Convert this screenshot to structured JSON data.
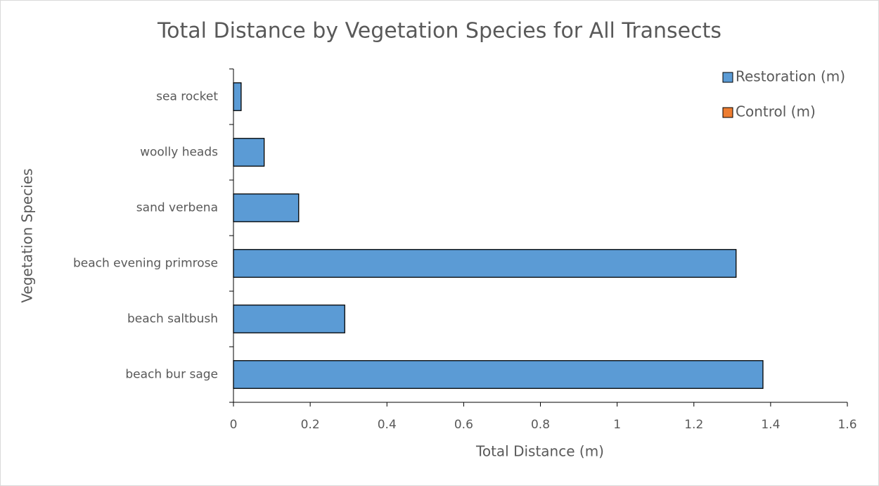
{
  "chart_data": {
    "type": "barh",
    "title": "Total Distance by Vegetation Species for All Transects",
    "xlabel": "Total Distance (m)",
    "ylabel": "Vegetation Species",
    "categories": [
      "beach bur sage",
      "beach saltbush",
      "beach evening primrose",
      "sand verbena",
      "woolly heads",
      "sea rocket"
    ],
    "series": [
      {
        "name": "Restoration (m)",
        "color": "#5b9bd5",
        "values": [
          1.38,
          0.29,
          1.31,
          0.17,
          0.08,
          0.02
        ]
      },
      {
        "name": "Control (m)",
        "color": "#ed7d31",
        "values": [
          null,
          null,
          null,
          null,
          null,
          null
        ]
      }
    ],
    "xlim": [
      0,
      1.6
    ],
    "xticks": [
      0,
      0.2,
      0.4,
      0.6,
      0.8,
      1,
      1.2,
      1.4,
      1.6
    ],
    "legend": "top-right",
    "grid": false
  }
}
